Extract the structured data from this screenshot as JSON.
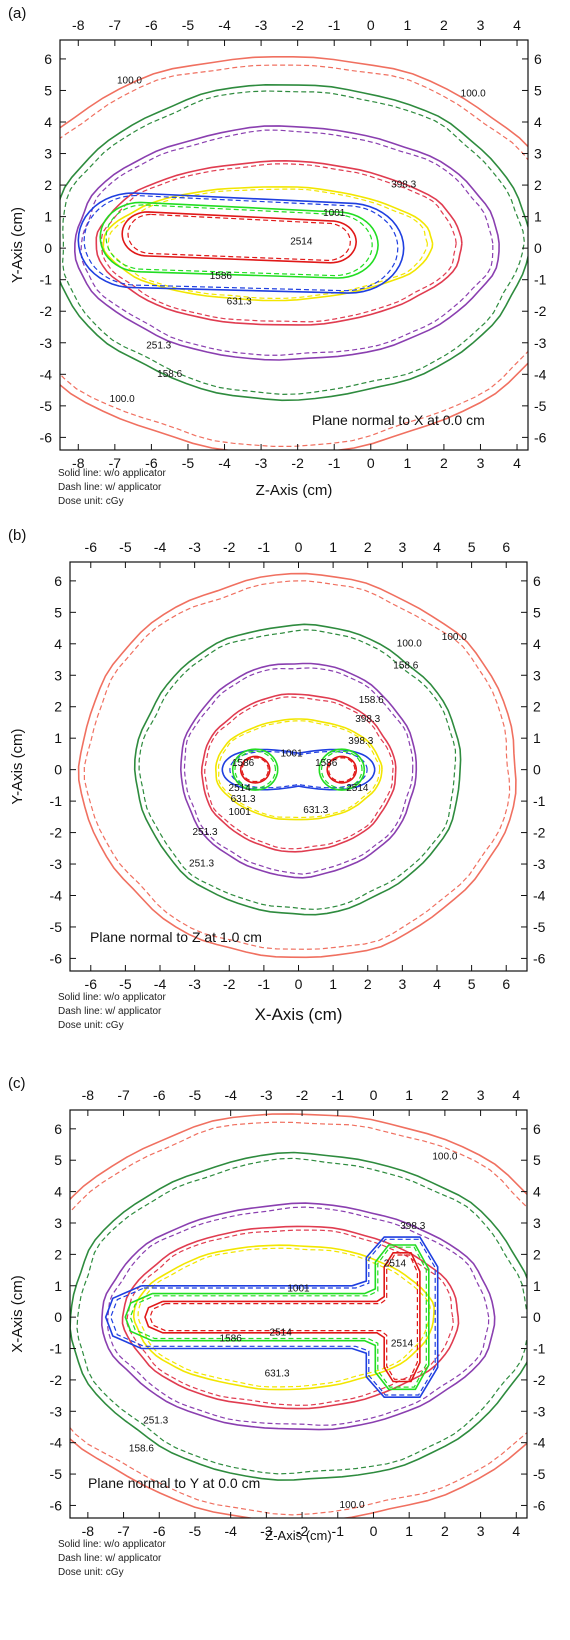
{
  "colors": {
    "c100": "#f07060",
    "c158_6": "#2e8b3e",
    "c251_3": "#8a3fb0",
    "c398_3": "#e03c50",
    "c631_3": "#f2e600",
    "c1001": "#1f3fe0",
    "c1586": "#22dd22",
    "c2514": "#e01818"
  },
  "chart_data": [
    {
      "type": "contour",
      "panel_label": "(a)",
      "plane_text": "Plane normal to X at 0.0 cm",
      "xlabel": "Z-Axis (cm)",
      "ylabel": "Y-Axis (cm)",
      "xlim": [
        -8.5,
        4.3
      ],
      "ylim": [
        -6.4,
        6.6
      ],
      "xticks": [
        "-8",
        "-7",
        "-6",
        "-5",
        "-4",
        "-3",
        "-2",
        "-1",
        "0",
        "1",
        "2",
        "3",
        "4"
      ],
      "yticks": [
        "-6",
        "-5",
        "-4",
        "-3",
        "-2",
        "-1",
        "0",
        "1",
        "2",
        "3",
        "4",
        "5",
        "6"
      ],
      "legend_lines": [
        "Solid line: w/o applicator",
        "Dash line: w/ applicator",
        "Dose unit: cGy"
      ],
      "levels": [
        {
          "value": "100.0",
          "color_key": "c100",
          "shape": "ellipse",
          "center": [
            -2.4,
            -0.2
          ],
          "radii": [
            8.0,
            6.3
          ]
        },
        {
          "value": "158.6",
          "color_key": "c158_6",
          "shape": "ellipse",
          "center": [
            -2.2,
            0.2
          ],
          "radii": [
            6.5,
            5.0
          ]
        },
        {
          "value": "251.3",
          "color_key": "c251_3",
          "shape": "ellipse",
          "center": [
            -2.3,
            0.15
          ],
          "radii": [
            5.8,
            3.7
          ]
        },
        {
          "value": "398.3",
          "color_key": "c398_3",
          "shape": "ellipse",
          "center": [
            -2.5,
            0.15
          ],
          "radii": [
            5.0,
            2.6
          ]
        },
        {
          "value": "631.3",
          "color_key": "c631_3",
          "shape": "ellipse",
          "center": [
            -2.8,
            0.15
          ],
          "radii": [
            4.5,
            1.8
          ]
        },
        {
          "value": "1001",
          "color_key": "c1001",
          "shape": "capsule",
          "x1": -6.5,
          "x2": -0.6,
          "y": 0.25,
          "r": 1.5
        },
        {
          "value": "1586",
          "color_key": "c1586",
          "shape": "capsule",
          "x1": -6.3,
          "x2": -0.9,
          "y": 0.35,
          "r": 1.1
        },
        {
          "value": "2514",
          "color_key": "c2514",
          "shape": "capsule",
          "x1": -6.1,
          "x2": -1.1,
          "y": 0.45,
          "r": 0.7
        }
      ],
      "labels": [
        {
          "text": "100.0",
          "x": -6.6,
          "y": 5.3
        },
        {
          "text": "100.0",
          "x": 2.8,
          "y": 4.9
        },
        {
          "text": "100.0",
          "x": -6.8,
          "y": -4.8
        },
        {
          "text": "158.6",
          "x": -5.5,
          "y": -4.0
        },
        {
          "text": "251.3",
          "x": -5.8,
          "y": -3.1
        },
        {
          "text": "398.3",
          "x": 0.9,
          "y": 2.0
        },
        {
          "text": "631.3",
          "x": -3.6,
          "y": -1.7
        },
        {
          "text": "1001",
          "x": -1.0,
          "y": 1.1
        },
        {
          "text": "1586",
          "x": -4.1,
          "y": -0.9
        },
        {
          "text": "2514",
          "x": -1.9,
          "y": 0.2
        }
      ]
    },
    {
      "type": "contour",
      "panel_label": "(b)",
      "plane_text": "Plane normal to Z at 1.0 cm",
      "xlabel": "X-Axis (cm)",
      "ylabel": "Y-Axis (cm)",
      "xlim": [
        -6.6,
        6.6
      ],
      "ylim": [
        -6.4,
        6.6
      ],
      "xticks": [
        "-6",
        "-5",
        "-4",
        "-3",
        "-2",
        "-1",
        "0",
        "1",
        "2",
        "3",
        "4",
        "5",
        "6"
      ],
      "yticks": [
        "-6",
        "-5",
        "-4",
        "-3",
        "-2",
        "-1",
        "0",
        "1",
        "2",
        "3",
        "4",
        "5",
        "6"
      ],
      "legend_lines": [
        "Solid line: w/o applicator",
        "Dash line: w/ applicator",
        "Dose unit: cGy"
      ],
      "levels": [
        {
          "value": "100.0",
          "color_key": "c100",
          "shape": "ellipse",
          "center": [
            0.0,
            0.1
          ],
          "radii": [
            6.3,
            6.1
          ]
        },
        {
          "value": "158.6",
          "color_key": "c158_6",
          "shape": "ellipse",
          "center": [
            0.0,
            0.0
          ],
          "radii": [
            4.7,
            4.6
          ]
        },
        {
          "value": "251.3",
          "color_key": "c251_3",
          "shape": "ellipse",
          "center": [
            0.0,
            0.0
          ],
          "radii": [
            3.4,
            3.4
          ]
        },
        {
          "value": "398.3",
          "color_key": "c398_3",
          "shape": "ellipse",
          "center": [
            0.0,
            -0.1
          ],
          "radii": [
            2.8,
            2.5
          ]
        },
        {
          "value": "631.3",
          "color_key": "c631_3",
          "shape": "ellipse",
          "center": [
            0.0,
            0.0
          ],
          "radii": [
            2.4,
            1.6
          ]
        },
        {
          "value": "1001",
          "color_key": "c1001",
          "shape": "peanut",
          "cx": 1.25,
          "r": 0.95
        },
        {
          "value": "1586",
          "color_key": "c1586",
          "shape": "twin",
          "cx": 1.25,
          "r": 0.65
        },
        {
          "value": "2514",
          "color_key": "c2514",
          "shape": "twin",
          "cx": 1.25,
          "r": 0.42
        }
      ],
      "labels": [
        {
          "text": "100.0",
          "x": 3.2,
          "y": 4.0
        },
        {
          "text": "100.0",
          "x": 4.5,
          "y": 4.2
        },
        {
          "text": "158.6",
          "x": 3.1,
          "y": 3.3
        },
        {
          "text": "158.6",
          "x": 2.1,
          "y": 2.2
        },
        {
          "text": "398.3",
          "x": 2.0,
          "y": 1.6
        },
        {
          "text": "398.3",
          "x": 1.8,
          "y": 0.9
        },
        {
          "text": "1001",
          "x": -0.2,
          "y": 0.5
        },
        {
          "text": "1586",
          "x": -1.6,
          "y": 0.2
        },
        {
          "text": "1586",
          "x": 0.8,
          "y": 0.2
        },
        {
          "text": "2514",
          "x": -1.7,
          "y": -0.6
        },
        {
          "text": "2514",
          "x": 1.7,
          "y": -0.6
        },
        {
          "text": "631.3",
          "x": -1.6,
          "y": -0.95
        },
        {
          "text": "1001",
          "x": -1.7,
          "y": -1.35
        },
        {
          "text": "631.3",
          "x": 0.5,
          "y": -1.3
        },
        {
          "text": "251.3",
          "x": -2.7,
          "y": -2.0
        },
        {
          "text": "251.3",
          "x": -2.8,
          "y": -3.0
        }
      ]
    },
    {
      "type": "contour",
      "panel_label": "(c)",
      "plane_text": "Plane normal to Y at 0.0 cm",
      "xlabel": "Z-Axis (cm)",
      "ylabel": "X-Axis (cm)",
      "xlim": [
        -8.5,
        4.3
      ],
      "ylim": [
        -6.4,
        6.6
      ],
      "xticks": [
        "-8",
        "-7",
        "-6",
        "-5",
        "-4",
        "-3",
        "-2",
        "-1",
        "0",
        "1",
        "2",
        "3",
        "4"
      ],
      "yticks": [
        "-6",
        "-5",
        "-4",
        "-3",
        "-2",
        "-1",
        "0",
        "1",
        "2",
        "3",
        "4",
        "5",
        "6"
      ],
      "legend_lines": [
        "Solid line: w/o applicator",
        "Dash line: w/ applicator",
        "Dose unit: cGy"
      ],
      "levels": [
        {
          "value": "100.0",
          "color_key": "c100",
          "shape": "ellipse",
          "center": [
            -2.0,
            0.0
          ],
          "radii": [
            8.0,
            6.5
          ]
        },
        {
          "value": "158.6",
          "color_key": "c158_6",
          "shape": "ellipse",
          "center": [
            -2.0,
            0.0
          ],
          "radii": [
            6.5,
            5.2
          ]
        },
        {
          "value": "251.3",
          "color_key": "c251_3",
          "shape": "ellipse",
          "center": [
            -2.1,
            0.0
          ],
          "radii": [
            5.5,
            3.6
          ]
        },
        {
          "value": "398.3",
          "color_key": "c398_3",
          "shape": "ellipse",
          "center": [
            -2.3,
            0.0
          ],
          "radii": [
            4.7,
            2.9
          ]
        },
        {
          "value": "631.3",
          "color_key": "c631_3",
          "shape": "ellipse",
          "center": [
            -2.5,
            0.0
          ],
          "radii": [
            4.2,
            2.3
          ]
        },
        {
          "value": "1001",
          "color_key": "c1001",
          "shape": "tjunction",
          "x1": -6.5,
          "xr": 0.8,
          "arm_y": 1.3,
          "r": 1.0
        },
        {
          "value": "1586",
          "color_key": "c1586",
          "shape": "tjunction",
          "x1": -6.2,
          "xr": 0.8,
          "arm_y": 1.3,
          "r": 0.75
        },
        {
          "value": "2514",
          "color_key": "c2514",
          "shape": "tjunction",
          "x1": -5.9,
          "xr": 0.8,
          "arm_y": 1.3,
          "r": 0.5
        }
      ],
      "labels": [
        {
          "text": "100.0",
          "x": 2.0,
          "y": 5.1
        },
        {
          "text": "100.0",
          "x": -0.6,
          "y": -6.0
        },
        {
          "text": "398.3",
          "x": 1.1,
          "y": 2.9
        },
        {
          "text": "2514",
          "x": 0.6,
          "y": 1.7
        },
        {
          "text": "1001",
          "x": -2.1,
          "y": 0.9
        },
        {
          "text": "2514",
          "x": -2.6,
          "y": -0.5
        },
        {
          "text": "1586",
          "x": -4.0,
          "y": -0.7
        },
        {
          "text": "2514",
          "x": 0.8,
          "y": -0.85
        },
        {
          "text": "631.3",
          "x": -2.7,
          "y": -1.8
        },
        {
          "text": "251.3",
          "x": -6.1,
          "y": -3.3
        },
        {
          "text": "158.6",
          "x": -6.5,
          "y": -4.2
        }
      ]
    }
  ]
}
